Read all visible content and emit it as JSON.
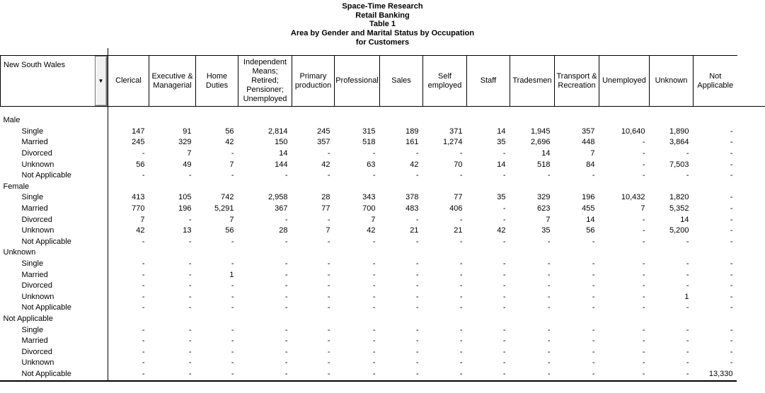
{
  "title": {
    "lines": [
      "Space-Time Research",
      "Retail Banking",
      "Table 1",
      "Area by Gender and Marital Status by Occupation",
      "for Customers"
    ]
  },
  "area_selector": {
    "label": "New South Wales",
    "dropdown_icon": "▼"
  },
  "table": {
    "columns": [
      "Clerical",
      "Executive & Managerial",
      "Home Duties",
      "Independent Means; Retired; Pensioner; Unemployed",
      "Primary production",
      "Professional",
      "Sales",
      "Self employed",
      "Staff",
      "Tradesmen",
      "Transport & Recreation",
      "Unemployed",
      "Unknown",
      "Not Applicable"
    ],
    "sections": [
      {
        "label": "Male",
        "rows": [
          {
            "label": "Single",
            "values": [
              "147",
              "91",
              "56",
              "2,814",
              "245",
              "315",
              "189",
              "371",
              "14",
              "1,945",
              "357",
              "10,640",
              "1,890",
              "-"
            ]
          },
          {
            "label": "Married",
            "values": [
              "245",
              "329",
              "42",
              "150",
              "357",
              "518",
              "161",
              "1,274",
              "35",
              "2,696",
              "448",
              "-",
              "3,864",
              "-"
            ]
          },
          {
            "label": "Divorced",
            "values": [
              "-",
              "7",
              "-",
              "14",
              "-",
              "-",
              "-",
              "-",
              "-",
              "14",
              "7",
              "-",
              "-",
              "-"
            ]
          },
          {
            "label": "Unknown",
            "values": [
              "56",
              "49",
              "7",
              "144",
              "42",
              "63",
              "42",
              "70",
              "14",
              "518",
              "84",
              "-",
              "7,503",
              "-"
            ]
          },
          {
            "label": "Not Applicable",
            "values": [
              "-",
              "-",
              "-",
              "-",
              "-",
              "-",
              "-",
              "-",
              "-",
              "-",
              "-",
              "-",
              "-",
              "-"
            ]
          }
        ]
      },
      {
        "label": "Female",
        "rows": [
          {
            "label": "Single",
            "values": [
              "413",
              "105",
              "742",
              "2,958",
              "28",
              "343",
              "378",
              "77",
              "35",
              "329",
              "196",
              "10,432",
              "1,820",
              "-"
            ]
          },
          {
            "label": "Married",
            "values": [
              "770",
              "196",
              "5,291",
              "367",
              "77",
              "700",
              "483",
              "406",
              "-",
              "623",
              "455",
              "7",
              "5,352",
              "-"
            ]
          },
          {
            "label": "Divorced",
            "values": [
              "7",
              "-",
              "7",
              "-",
              "-",
              "7",
              "-",
              "-",
              "-",
              "7",
              "14",
              "-",
              "14",
              "-"
            ]
          },
          {
            "label": "Unknown",
            "values": [
              "42",
              "13",
              "56",
              "28",
              "7",
              "42",
              "21",
              "21",
              "42",
              "35",
              "56",
              "-",
              "5,200",
              "-"
            ]
          },
          {
            "label": "Not Applicable",
            "values": [
              "-",
              "-",
              "-",
              "-",
              "-",
              "-",
              "-",
              "-",
              "-",
              "-",
              "-",
              "-",
              "-",
              "-"
            ]
          }
        ]
      },
      {
        "label": "Unknown",
        "rows": [
          {
            "label": "Single",
            "values": [
              "-",
              "-",
              "-",
              "-",
              "-",
              "-",
              "-",
              "-",
              "-",
              "-",
              "-",
              "-",
              "-",
              "-"
            ]
          },
          {
            "label": "Married",
            "values": [
              "-",
              "-",
              "1",
              "-",
              "-",
              "-",
              "-",
              "-",
              "-",
              "-",
              "-",
              "-",
              "-",
              "-"
            ]
          },
          {
            "label": "Divorced",
            "values": [
              "-",
              "-",
              "-",
              "-",
              "-",
              "-",
              "-",
              "-",
              "-",
              "-",
              "-",
              "-",
              "-",
              "-"
            ]
          },
          {
            "label": "Unknown",
            "values": [
              "-",
              "-",
              "-",
              "-",
              "-",
              "-",
              "-",
              "-",
              "-",
              "-",
              "-",
              "-",
              "1",
              "-"
            ]
          },
          {
            "label": "Not Applicable",
            "values": [
              "-",
              "-",
              "-",
              "-",
              "-",
              "-",
              "-",
              "-",
              "-",
              "-",
              "-",
              "-",
              "-",
              "-"
            ]
          }
        ]
      },
      {
        "label": "Not Applicable",
        "rows": [
          {
            "label": "Single",
            "values": [
              "-",
              "-",
              "-",
              "-",
              "-",
              "-",
              "-",
              "-",
              "-",
              "-",
              "-",
              "-",
              "-",
              "-"
            ]
          },
          {
            "label": "Married",
            "values": [
              "-",
              "-",
              "-",
              "-",
              "-",
              "-",
              "-",
              "-",
              "-",
              "-",
              "-",
              "-",
              "-",
              "-"
            ]
          },
          {
            "label": "Divorced",
            "values": [
              "-",
              "-",
              "-",
              "-",
              "-",
              "-",
              "-",
              "-",
              "-",
              "-",
              "-",
              "-",
              "-",
              "-"
            ]
          },
          {
            "label": "Unknown",
            "values": [
              "-",
              "-",
              "-",
              "-",
              "-",
              "-",
              "-",
              "-",
              "-",
              "-",
              "-",
              "-",
              "-",
              "-"
            ]
          },
          {
            "label": "Not Applicable",
            "values": [
              "-",
              "-",
              "-",
              "-",
              "-",
              "-",
              "-",
              "-",
              "-",
              "-",
              "-",
              "-",
              "-",
              "13,330"
            ]
          }
        ]
      }
    ]
  },
  "colors": {
    "text": "#000000",
    "background": "#ffffff",
    "button_face": "#f1f1f1",
    "line": "#000000"
  }
}
